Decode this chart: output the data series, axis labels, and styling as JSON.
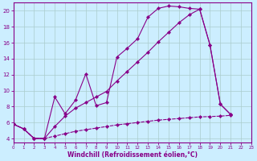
{
  "xlabel": "Windchill (Refroidissement éolien,°C)",
  "bg_color": "#cceeff",
  "grid_color": "#aacccc",
  "line_color": "#880088",
  "xlim": [
    0,
    23
  ],
  "ylim": [
    3.5,
    21.0
  ],
  "xtick_labels": [
    "0",
    "1",
    "2",
    "3",
    "4",
    "5",
    "6",
    "7",
    "8",
    "9",
    "10",
    "11",
    "12",
    "13",
    "14",
    "15",
    "16",
    "17",
    "18",
    "19",
    "20",
    "21",
    "22",
    "23"
  ],
  "ytick_labels": [
    "4",
    "6",
    "8",
    "10",
    "12",
    "14",
    "16",
    "18",
    "20"
  ],
  "ytick_vals": [
    4,
    6,
    8,
    10,
    12,
    14,
    16,
    18,
    20
  ],
  "line1_x": [
    0,
    1,
    2,
    3,
    4,
    5,
    6,
    7,
    8,
    9,
    10,
    11,
    12,
    13,
    14,
    15,
    16,
    17,
    18,
    19,
    20,
    21
  ],
  "line1_y": [
    5.8,
    5.2,
    4.0,
    4.0,
    9.2,
    7.1,
    8.8,
    12.1,
    8.1,
    8.5,
    14.2,
    15.3,
    16.5,
    19.2,
    20.3,
    20.6,
    20.5,
    20.3,
    20.2,
    15.7,
    8.3,
    7.0
  ],
  "line2_x": [
    0,
    1,
    2,
    3,
    4,
    5,
    6,
    7,
    8,
    9,
    10,
    11,
    12,
    13,
    14,
    15,
    16,
    17,
    18,
    19,
    20,
    21
  ],
  "line2_y": [
    5.8,
    5.2,
    4.0,
    4.0,
    5.5,
    6.8,
    7.8,
    8.5,
    9.2,
    9.9,
    11.2,
    12.4,
    13.6,
    14.8,
    16.1,
    17.3,
    18.5,
    19.5,
    20.2,
    15.7,
    8.3,
    7.0
  ],
  "line3_x": [
    0,
    1,
    2,
    3,
    4,
    5,
    6,
    7,
    8,
    9,
    10,
    11,
    12,
    13,
    14,
    15,
    16,
    17,
    18,
    19,
    20,
    21
  ],
  "line3_y": [
    5.8,
    5.2,
    4.0,
    4.0,
    4.3,
    4.6,
    4.9,
    5.1,
    5.3,
    5.5,
    5.7,
    5.85,
    6.0,
    6.15,
    6.3,
    6.4,
    6.5,
    6.6,
    6.7,
    6.75,
    6.8,
    6.9
  ]
}
